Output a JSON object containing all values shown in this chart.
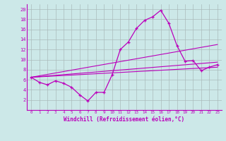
{
  "bg_color": "#cce8e8",
  "grid_color": "#aabbbb",
  "line_color": "#bb00bb",
  "xlim": [
    -0.5,
    23.5
  ],
  "ylim": [
    0,
    21
  ],
  "yticks": [
    2,
    4,
    6,
    8,
    10,
    12,
    14,
    16,
    18,
    20
  ],
  "xticks": [
    0,
    1,
    2,
    3,
    4,
    5,
    6,
    7,
    8,
    9,
    10,
    11,
    12,
    13,
    14,
    15,
    16,
    17,
    18,
    19,
    20,
    21,
    22,
    23
  ],
  "xlabel": "Windchill (Refroidissement éolien,°C)",
  "series1_x": [
    0,
    1,
    2,
    3,
    4,
    5,
    6,
    7,
    8,
    9,
    10,
    11,
    12,
    13,
    14,
    15,
    16,
    17,
    18,
    19,
    20,
    21,
    22,
    23
  ],
  "series1_y": [
    6.5,
    5.5,
    5.0,
    5.8,
    5.3,
    4.5,
    3.0,
    1.8,
    3.5,
    3.5,
    7.0,
    12.0,
    13.5,
    16.2,
    17.8,
    18.5,
    19.8,
    17.2,
    12.8,
    9.7,
    9.8,
    7.8,
    8.5,
    9.0
  ],
  "ref_line1_x": [
    0,
    23
  ],
  "ref_line1_y": [
    6.5,
    8.5
  ],
  "ref_line2_x": [
    0,
    23
  ],
  "ref_line2_y": [
    6.5,
    9.5
  ],
  "ref_line3_x": [
    0,
    23
  ],
  "ref_line3_y": [
    6.5,
    13.0
  ]
}
